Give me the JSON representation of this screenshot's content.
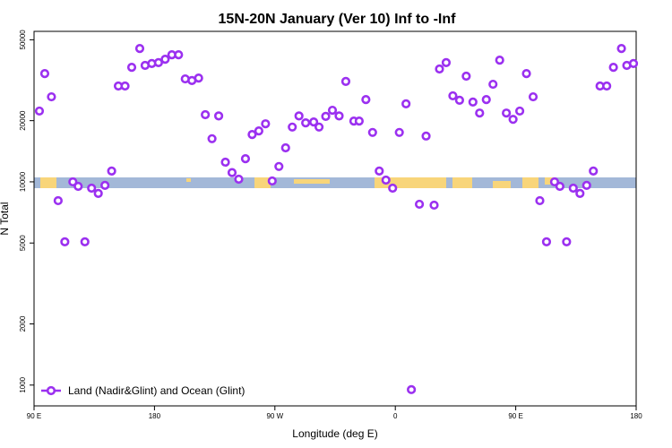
{
  "chart_data": {
    "type": "scatter",
    "title": "15N-20N January (Ver 10)   Inf to -Inf",
    "x_label": "Longitude (deg E)",
    "y_label": "N Total",
    "log_y": true,
    "legend_position": "bottomleft",
    "xlim": [
      90,
      540
    ],
    "xticks": [
      {
        "value": 90,
        "label": "90 E"
      },
      {
        "value": 180,
        "label": "180"
      },
      {
        "value": 270,
        "label": "90 W"
      },
      {
        "value": 360,
        "label": "0"
      },
      {
        "value": 450,
        "label": "90 E"
      },
      {
        "value": 540,
        "label": "180"
      }
    ],
    "ylim": [
      790,
      55000
    ],
    "yticks": [
      1000,
      2000,
      5000,
      10000,
      20000,
      50000
    ],
    "series": [
      {
        "name": "Land (Nadir&Glint) and Ocean (Glint)",
        "color": "#9b30f0",
        "x": [
          94,
          98,
          103,
          108,
          113,
          119,
          123,
          128,
          133,
          138,
          143,
          148,
          153,
          158,
          163,
          169,
          173,
          178,
          183,
          188,
          193,
          198,
          203,
          208,
          213,
          218,
          223,
          228,
          233,
          238,
          243,
          248,
          253,
          258,
          263,
          268,
          273,
          278,
          283,
          288,
          293,
          299,
          303,
          308,
          313,
          318,
          323,
          329,
          333,
          338,
          343,
          348,
          353,
          358,
          363,
          368,
          372,
          378,
          383,
          389,
          393,
          398,
          403,
          408,
          413,
          418,
          423,
          428,
          433,
          438,
          443,
          448,
          453,
          458,
          463,
          468,
          473,
          479,
          483,
          488,
          493,
          498,
          503,
          508,
          513,
          518,
          523,
          529,
          533,
          538
        ],
        "values": [
          22300,
          34100,
          26200,
          8080,
          5070,
          10000,
          9500,
          5070,
          9310,
          8770,
          9610,
          11300,
          29600,
          29600,
          36600,
          45300,
          37400,
          38200,
          38600,
          40100,
          42200,
          42200,
          32100,
          31500,
          32400,
          21400,
          16300,
          21100,
          12500,
          11100,
          10300,
          13000,
          17100,
          17800,
          19300,
          10100,
          11900,
          14700,
          18600,
          21100,
          19500,
          19700,
          18600,
          21000,
          22500,
          21100,
          31200,
          19900,
          19900,
          25400,
          17500,
          11300,
          10200,
          9310,
          17500,
          24200,
          950,
          7760,
          16800,
          7680,
          35900,
          38600,
          26500,
          25200,
          33100,
          24700,
          21800,
          25400,
          30200,
          39700,
          21800,
          20300,
          22300,
          34100,
          26200,
          8080,
          5070,
          10000,
          9500,
          5070,
          9310,
          8770,
          9610,
          11300,
          29600,
          29600,
          36600,
          45300,
          37400,
          38200
        ]
      }
    ]
  }
}
